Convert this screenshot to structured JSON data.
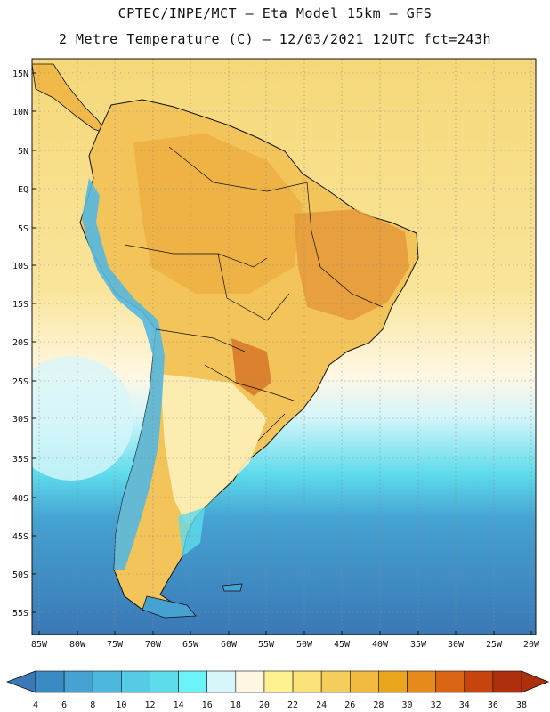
{
  "header": {
    "line1": "CPTEC/INPE/MCT –  Eta Model 15km – GFS",
    "line2": "2 Metre Temperature (C) – 12/03/2021 12UTC fct=243h"
  },
  "map": {
    "lat_labels": [
      "15N",
      "10N",
      "5N",
      "EQ",
      "5S",
      "10S",
      "15S",
      "20S",
      "25S",
      "30S",
      "35S",
      "40S",
      "45S",
      "50S",
      "55S"
    ],
    "lon_labels": [
      "85W",
      "80W",
      "75W",
      "70W",
      "65W",
      "60W",
      "55W",
      "50W",
      "45W",
      "40W",
      "35W",
      "30W",
      "25W",
      "20W"
    ],
    "lat_range": [
      15,
      -55
    ],
    "lon_range": [
      -85,
      -20
    ]
  },
  "colorbar": {
    "values": [
      "4",
      "6",
      "8",
      "10",
      "12",
      "14",
      "16",
      "18",
      "20",
      "22",
      "24",
      "26",
      "28",
      "30",
      "32",
      "34",
      "36",
      "38"
    ],
    "colors": [
      "#3a78b6",
      "#3a8bc4",
      "#45a2d2",
      "#4db7dd",
      "#55cbe6",
      "#5fdcec",
      "#6cf2f9",
      "#d7f6fa",
      "#fff7e4",
      "#fdf28f",
      "#f9e277",
      "#f5cd5c",
      "#f0bb40",
      "#eba51d",
      "#e68a1b",
      "#d96414",
      "#c8440f",
      "#ad2f0c"
    ]
  },
  "colors": {
    "ocean_tropical": "#f6d879",
    "ocean_warm": "#f9e59a",
    "ocean_mid": "#d7f6fa",
    "ocean_cool": "#5fdcec",
    "ocean_cold": "#3a8bc4",
    "land_hot": "#f0b94a",
    "land_hotter": "#e2913a",
    "andes": "#55b8df"
  }
}
